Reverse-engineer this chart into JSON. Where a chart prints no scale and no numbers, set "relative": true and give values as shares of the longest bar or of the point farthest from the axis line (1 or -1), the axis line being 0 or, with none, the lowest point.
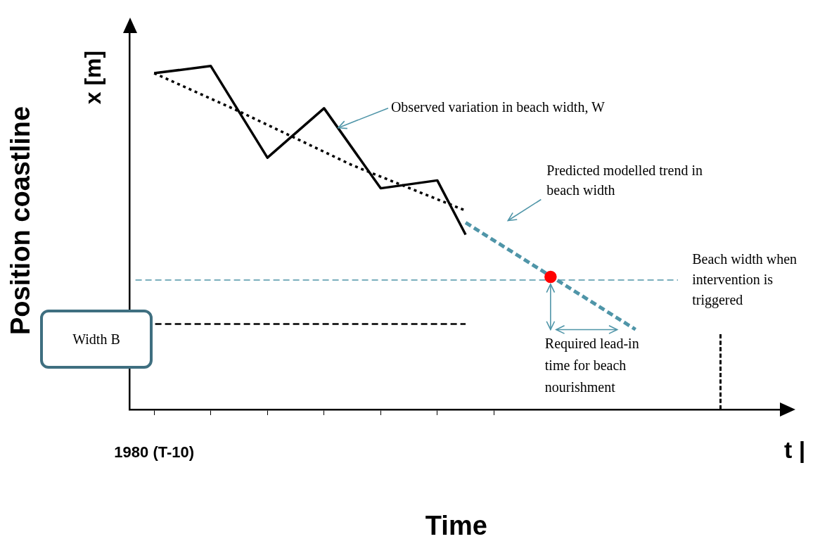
{
  "chart_data": {
    "type": "line",
    "relative": true,
    "xlabel": "Time",
    "ylabel": "Position coastline",
    "categories": [
      null,
      null,
      null,
      null,
      null,
      null,
      null,
      null,
      null,
      null,
      null,
      null,
      null,
      null,
      null,
      null,
      null,
      null,
      null,
      null,
      null,
      null,
      null
    ],
    "series": [
      {
        "color": "#000000",
        "line_style": "solid",
        "marker": "none",
        "values": [
          0.979,
          null,
          1.0,
          null,
          0.733,
          null,
          0.877,
          null,
          0.644,
          null,
          0.667,
          0.509,
          null,
          null,
          null,
          null,
          null,
          null,
          null,
          null,
          null,
          null,
          null
        ]
      },
      {
        "color": "#000000",
        "line_style": "dotted",
        "marker": "none",
        "values": [
          0.979,
          null,
          null,
          0.868,
          null,
          null,
          null,
          0.711,
          null,
          null,
          null,
          0.579,
          null,
          null,
          null,
          null,
          null,
          null,
          null,
          null,
          null,
          null,
          null
        ]
      },
      {
        "color": "#4f95a8",
        "line_style": "dashed",
        "marker": "none",
        "values": [
          null,
          null,
          null,
          null,
          null,
          null,
          null,
          null,
          null,
          null,
          null,
          0.544,
          null,
          null,
          null,
          null,
          null,
          0.233,
          null,
          null,
          null,
          null,
          null
        ]
      },
      {
        "color": "#ff0000",
        "marker": "circle",
        "values": [
          null,
          null,
          null,
          null,
          null,
          null,
          null,
          null,
          null,
          null,
          null,
          null,
          null,
          null,
          0.386,
          null,
          null,
          null,
          null,
          null,
          null,
          null,
          null
        ]
      }
    ],
    "ref_lines": [
      {
        "axis": "y",
        "value": 0.377,
        "label": "Beach width when intervention is triggered",
        "color": "#4f95a8",
        "line_style": "dashed"
      },
      {
        "axis": "y",
        "value": 0.249,
        "label": "Width B",
        "color": "#000000",
        "line_style": "dashed"
      }
    ],
    "annotations": [
      "x [m]",
      "t |",
      "Observed variation in beach width, W",
      "Predicted modelled trend in beach width",
      "Required lead-in time for beach nourishment",
      "1980 (T-10)"
    ],
    "grid": false,
    "legend": false
  }
}
